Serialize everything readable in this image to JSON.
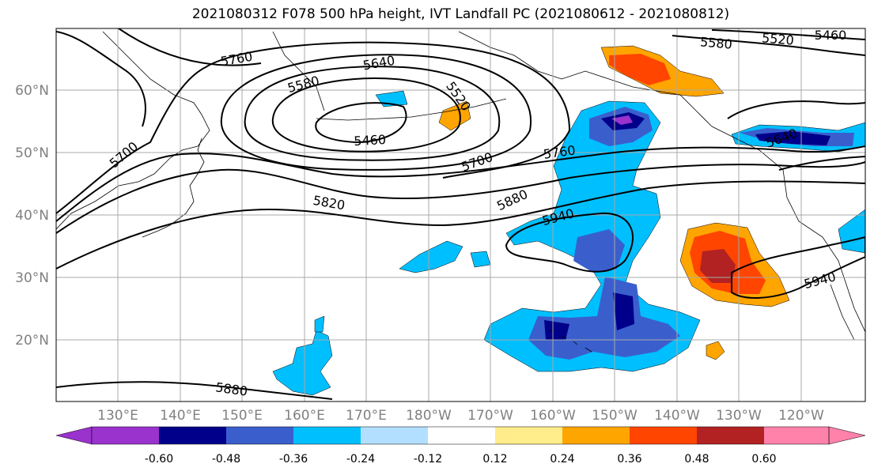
{
  "title": "2021080312 F078 500 hPa height, IVT Landfall PC (2021080612 - 2021080812)",
  "map": {
    "lat_ticks": [
      "60°N",
      "50°N",
      "40°N",
      "30°N",
      "20°N"
    ],
    "lon_ticks": [
      "130°E",
      "140°E",
      "150°E",
      "160°E",
      "170°E",
      "180°W",
      "170°W",
      "160°W",
      "150°W",
      "140°W",
      "130°W",
      "120°W"
    ],
    "contour_labels": [
      "5760",
      "5640",
      "5580",
      "5520",
      "5460",
      "5700",
      "5700",
      "5760",
      "5820",
      "5880",
      "5940",
      "5940",
      "5880",
      "5580",
      "5520",
      "5460",
      "5640"
    ]
  },
  "colorbar": {
    "labels": [
      "-0.60",
      "-0.48",
      "-0.36",
      "-0.24",
      "-0.12",
      "0.12",
      "0.24",
      "0.36",
      "0.48",
      "0.60"
    ],
    "colors": [
      "#9a32cd",
      "#00008b",
      "#3a5fcd",
      "#00bfff",
      "#b2dfff",
      "#ffffff",
      "#ffec8b",
      "#ffa500",
      "#ff4500",
      "#b22222",
      "#ff82ab"
    ]
  }
}
